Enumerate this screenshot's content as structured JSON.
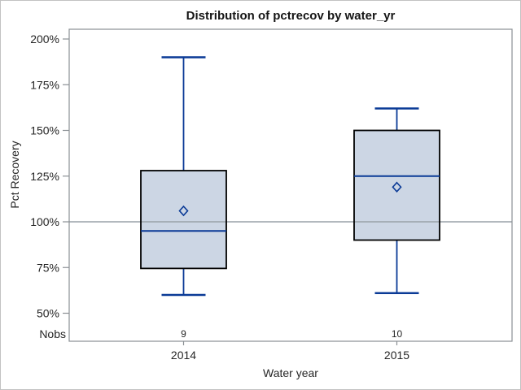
{
  "figure": {
    "title": "Distribution of pctrecov by water_yr"
  },
  "y_axis": {
    "label": "Pct Recovery",
    "ticks": [
      {
        "label": "200%",
        "value": 200
      },
      {
        "label": "175%",
        "value": 175
      },
      {
        "label": "150%",
        "value": 150
      },
      {
        "label": "125%",
        "value": 125
      },
      {
        "label": "100%",
        "value": 100
      },
      {
        "label": "75%",
        "value": 75
      },
      {
        "label": "50%",
        "value": 50
      }
    ]
  },
  "x_axis": {
    "label": "Water year",
    "categories": [
      "2014",
      "2015"
    ]
  },
  "nobs": {
    "label": "Nobs",
    "values": [
      "9",
      "10"
    ]
  },
  "chart_data": {
    "type": "box",
    "title": "Distribution of pctrecov by water_yr",
    "xlabel": "Water year",
    "ylabel": "Pct Recovery",
    "categories": [
      "2014",
      "2015"
    ],
    "ylim": [
      35,
      205
    ],
    "y_ticks_pct": [
      200,
      175,
      150,
      125,
      100,
      75,
      50
    ],
    "refline_pct": 100,
    "grid": "off",
    "legend": "none",
    "series": [
      {
        "category": "2014",
        "nobs": 9,
        "whisker_low": 60,
        "q1": 74.5,
        "median": 95,
        "mean": 106,
        "q3": 128,
        "whisker_high": 190
      },
      {
        "category": "2015",
        "nobs": 10,
        "whisker_low": 61,
        "q1": 90,
        "median": 125,
        "mean": 119,
        "q3": 150,
        "whisker_high": 162
      }
    ]
  },
  "colors": {
    "box_fill": "#ccd6e4",
    "box_border": "#000000",
    "box_line": "#0a3a96",
    "frame": "#8a8f94",
    "refline": "#9aa2a8",
    "tick": "#8a8f94",
    "text": "#262626",
    "title_text": "#151515",
    "figure_border": "#c2c2c2",
    "background": "#ffffff"
  }
}
